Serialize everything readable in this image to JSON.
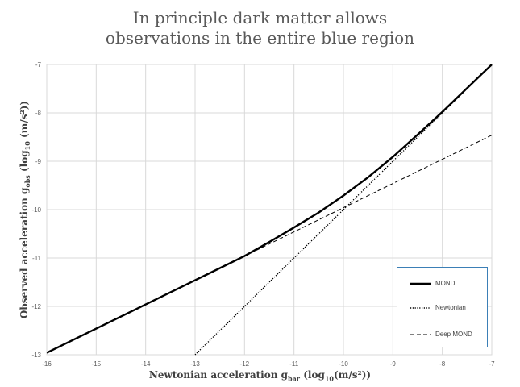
{
  "title": {
    "line1": "In principle dark matter allows",
    "line2": "observations in the entire blue region"
  },
  "axes": {
    "x_title_main": "Newtonian acceleration g",
    "x_title_sub": "bar",
    "x_title_units_a": " (log",
    "x_title_units_sub": "10",
    "x_title_units_b": "(m/s²))",
    "y_title_main": "Observed acceleration g",
    "y_title_sub": "obs",
    "y_title_units_a": " (log",
    "y_title_units_sub": "10",
    "y_title_units_b": " (m/s²))"
  },
  "chart_data": {
    "type": "line",
    "xlim": [
      -16,
      -7
    ],
    "ylim": [
      -13,
      -7
    ],
    "x_ticks": [
      -16,
      -15,
      -14,
      -13,
      -12,
      -11,
      -10,
      -9,
      -8,
      -7
    ],
    "y_ticks": [
      -13,
      -12,
      -11,
      -10,
      -9,
      -8,
      -7
    ],
    "grid": true,
    "legend_placement": "bottom-right",
    "series": [
      {
        "name": "MOND",
        "style": "solid-thick",
        "color": "#000000",
        "x": [
          -16,
          -15,
          -14,
          -13,
          -12,
          -11.5,
          -11,
          -10.5,
          -10,
          -9.5,
          -9,
          -8.5,
          -8,
          -7.5,
          -7
        ],
        "y": [
          -12.96,
          -12.46,
          -11.96,
          -11.46,
          -10.96,
          -10.67,
          -10.37,
          -10.06,
          -9.71,
          -9.33,
          -8.91,
          -8.45,
          -7.98,
          -7.49,
          -7.0
        ]
      },
      {
        "name": "Newtonian",
        "style": "dotted",
        "color": "#000000",
        "x": [
          -13,
          -7
        ],
        "y": [
          -13,
          -7
        ]
      },
      {
        "name": "Deep MOND",
        "style": "dashed",
        "color": "#000000",
        "x": [
          -12,
          -7
        ],
        "y": [
          -10.96,
          -8.46
        ]
      }
    ]
  }
}
